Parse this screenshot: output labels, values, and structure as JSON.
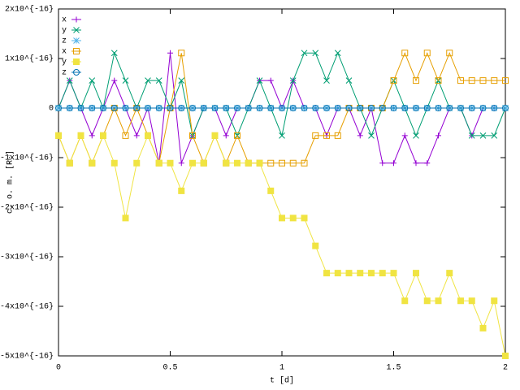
{
  "chart_data": {
    "type": "line",
    "xlabel": "t [d]",
    "ylabel": "c. o. m. [R☉]",
    "xlim": [
      0,
      2
    ],
    "xticks": [
      0,
      0.5,
      1,
      1.5,
      2
    ],
    "ylim": [
      -5e-16,
      2e-16
    ],
    "yticks": [
      {
        "value": -5e-16,
        "label": "-5x10^{-16}"
      },
      {
        "value": -4e-16,
        "label": "-4x10^{-16}"
      },
      {
        "value": -3e-16,
        "label": "-3x10^{-16}"
      },
      {
        "value": -2e-16,
        "label": "-2x10^{-16}"
      },
      {
        "value": -1e-16,
        "label": "-1x10^{-16}"
      },
      0,
      {
        "value": 1e-16,
        "label": "1x10^{-16}"
      },
      {
        "value": 2e-16,
        "label": "2x10^{-16}"
      }
    ],
    "legend": "top-left",
    "x": [
      0,
      0.05,
      0.1,
      0.15,
      0.2,
      0.25,
      0.3,
      0.35,
      0.4,
      0.45,
      0.5,
      0.55,
      0.6,
      0.65,
      0.7,
      0.75,
      0.8,
      0.85,
      0.9,
      0.95,
      1,
      1.05,
      1.1,
      1.15,
      1.2,
      1.25,
      1.3,
      1.35,
      1.4,
      1.45,
      1.5,
      1.55,
      1.6,
      1.65,
      1.7,
      1.75,
      1.8,
      1.85,
      1.9,
      1.95,
      2
    ],
    "series": [
      {
        "name": "x",
        "color": "#9400d3",
        "marker": "plus",
        "values": [
          0,
          5.55e-17,
          0,
          -5.55e-17,
          0,
          5.55e-17,
          0,
          -5.55e-17,
          0,
          -1.11e-16,
          1.11e-16,
          -1.11e-16,
          -5.55e-17,
          0,
          0,
          -5.55e-17,
          0,
          0,
          5.55e-17,
          5.55e-17,
          0,
          5.55e-17,
          0,
          0,
          -5.55e-17,
          0,
          0,
          -5.55e-17,
          0,
          -1.11e-16,
          -1.11e-16,
          -5.55e-17,
          -1.11e-16,
          -1.11e-16,
          -5.55e-17,
          0,
          0,
          -5.55e-17,
          0,
          0,
          0
        ]
      },
      {
        "name": "y",
        "color": "#009e73",
        "marker": "cross",
        "values": [
          0,
          5.55e-17,
          0,
          5.55e-17,
          0,
          1.11e-16,
          5.55e-17,
          0,
          5.55e-17,
          5.55e-17,
          0,
          5.55e-17,
          -5.55e-17,
          0,
          0,
          0,
          -5.55e-17,
          0,
          5.55e-17,
          0,
          -5.55e-17,
          5.55e-17,
          1.11e-16,
          1.11e-16,
          5.55e-17,
          1.11e-16,
          5.55e-17,
          0,
          -5.55e-17,
          0,
          5.55e-17,
          0,
          -5.55e-17,
          0,
          5.55e-17,
          0,
          0,
          -5.55e-17,
          -5.55e-17,
          -5.55e-17,
          0
        ]
      },
      {
        "name": "z",
        "color": "#56b4e9",
        "marker": "star",
        "values": [
          0,
          0,
          0,
          0,
          0,
          0,
          0,
          0,
          0,
          0,
          0,
          0,
          0,
          0,
          0,
          0,
          0,
          0,
          0,
          0,
          0,
          0,
          0,
          0,
          0,
          0,
          0,
          0,
          0,
          0,
          0,
          0,
          0,
          0,
          0,
          0,
          0,
          0,
          0,
          0,
          0
        ]
      },
      {
        "name": "x",
        "color": "#e69f00",
        "marker": "square",
        "values": [
          -5.55e-17,
          -1.11e-16,
          -5.55e-17,
          -1.11e-16,
          -5.55e-17,
          0,
          -5.55e-17,
          0,
          -5.55e-17,
          -1.11e-16,
          0,
          1.11e-16,
          -5.55e-17,
          -1.11e-16,
          -5.55e-17,
          -1.11e-16,
          -5.55e-17,
          -1.11e-16,
          -1.11e-16,
          -1.11e-16,
          -1.11e-16,
          -1.11e-16,
          -1.11e-16,
          -5.55e-17,
          -5.55e-17,
          -5.55e-17,
          0,
          0,
          0,
          0,
          5.55e-17,
          1.11e-16,
          5.55e-17,
          1.11e-16,
          5.55e-17,
          1.11e-16,
          5.55e-17,
          5.55e-17,
          5.55e-17,
          5.55e-17,
          5.55e-17
        ]
      },
      {
        "name": "y",
        "color": "#f0e442",
        "marker": "filled-square",
        "values": [
          -5.55e-17,
          -1.11e-16,
          -5.55e-17,
          -1.11e-16,
          -5.55e-17,
          -1.11e-16,
          -2.22e-16,
          -1.11e-16,
          -5.55e-17,
          -1.11e-16,
          -1.11e-16,
          -1.67e-16,
          -1.11e-16,
          -1.11e-16,
          -5.55e-17,
          -1.11e-16,
          -1.11e-16,
          -1.11e-16,
          -1.11e-16,
          -1.67e-16,
          -2.22e-16,
          -2.22e-16,
          -2.22e-16,
          -2.78e-16,
          -3.33e-16,
          -3.33e-16,
          -3.33e-16,
          -3.33e-16,
          -3.33e-16,
          -3.33e-16,
          -3.33e-16,
          -3.89e-16,
          -3.33e-16,
          -3.89e-16,
          -3.89e-16,
          -3.33e-16,
          -3.89e-16,
          -3.89e-16,
          -4.44e-16,
          -3.89e-16,
          -5e-16
        ]
      },
      {
        "name": "z",
        "color": "#0072b2",
        "marker": "circle",
        "values": [
          0,
          0,
          0,
          0,
          0,
          0,
          0,
          0,
          0,
          0,
          0,
          0,
          0,
          0,
          0,
          0,
          0,
          0,
          0,
          0,
          0,
          0,
          0,
          0,
          0,
          0,
          0,
          0,
          0,
          0,
          0,
          0,
          0,
          0,
          0,
          0,
          0,
          0,
          0,
          0,
          0
        ]
      }
    ]
  }
}
